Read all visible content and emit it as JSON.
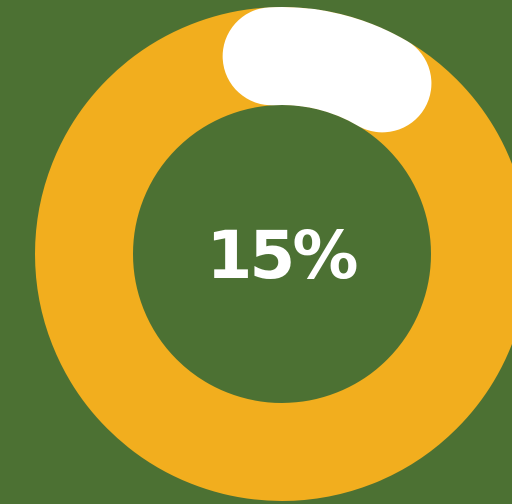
{
  "progress": {
    "label": "15%",
    "value": 0.15
  },
  "colors": {
    "background": "#4C7133",
    "track": "#F2AE1E",
    "progress": "#FFFFFF",
    "label": "#FFFFFF"
  }
}
